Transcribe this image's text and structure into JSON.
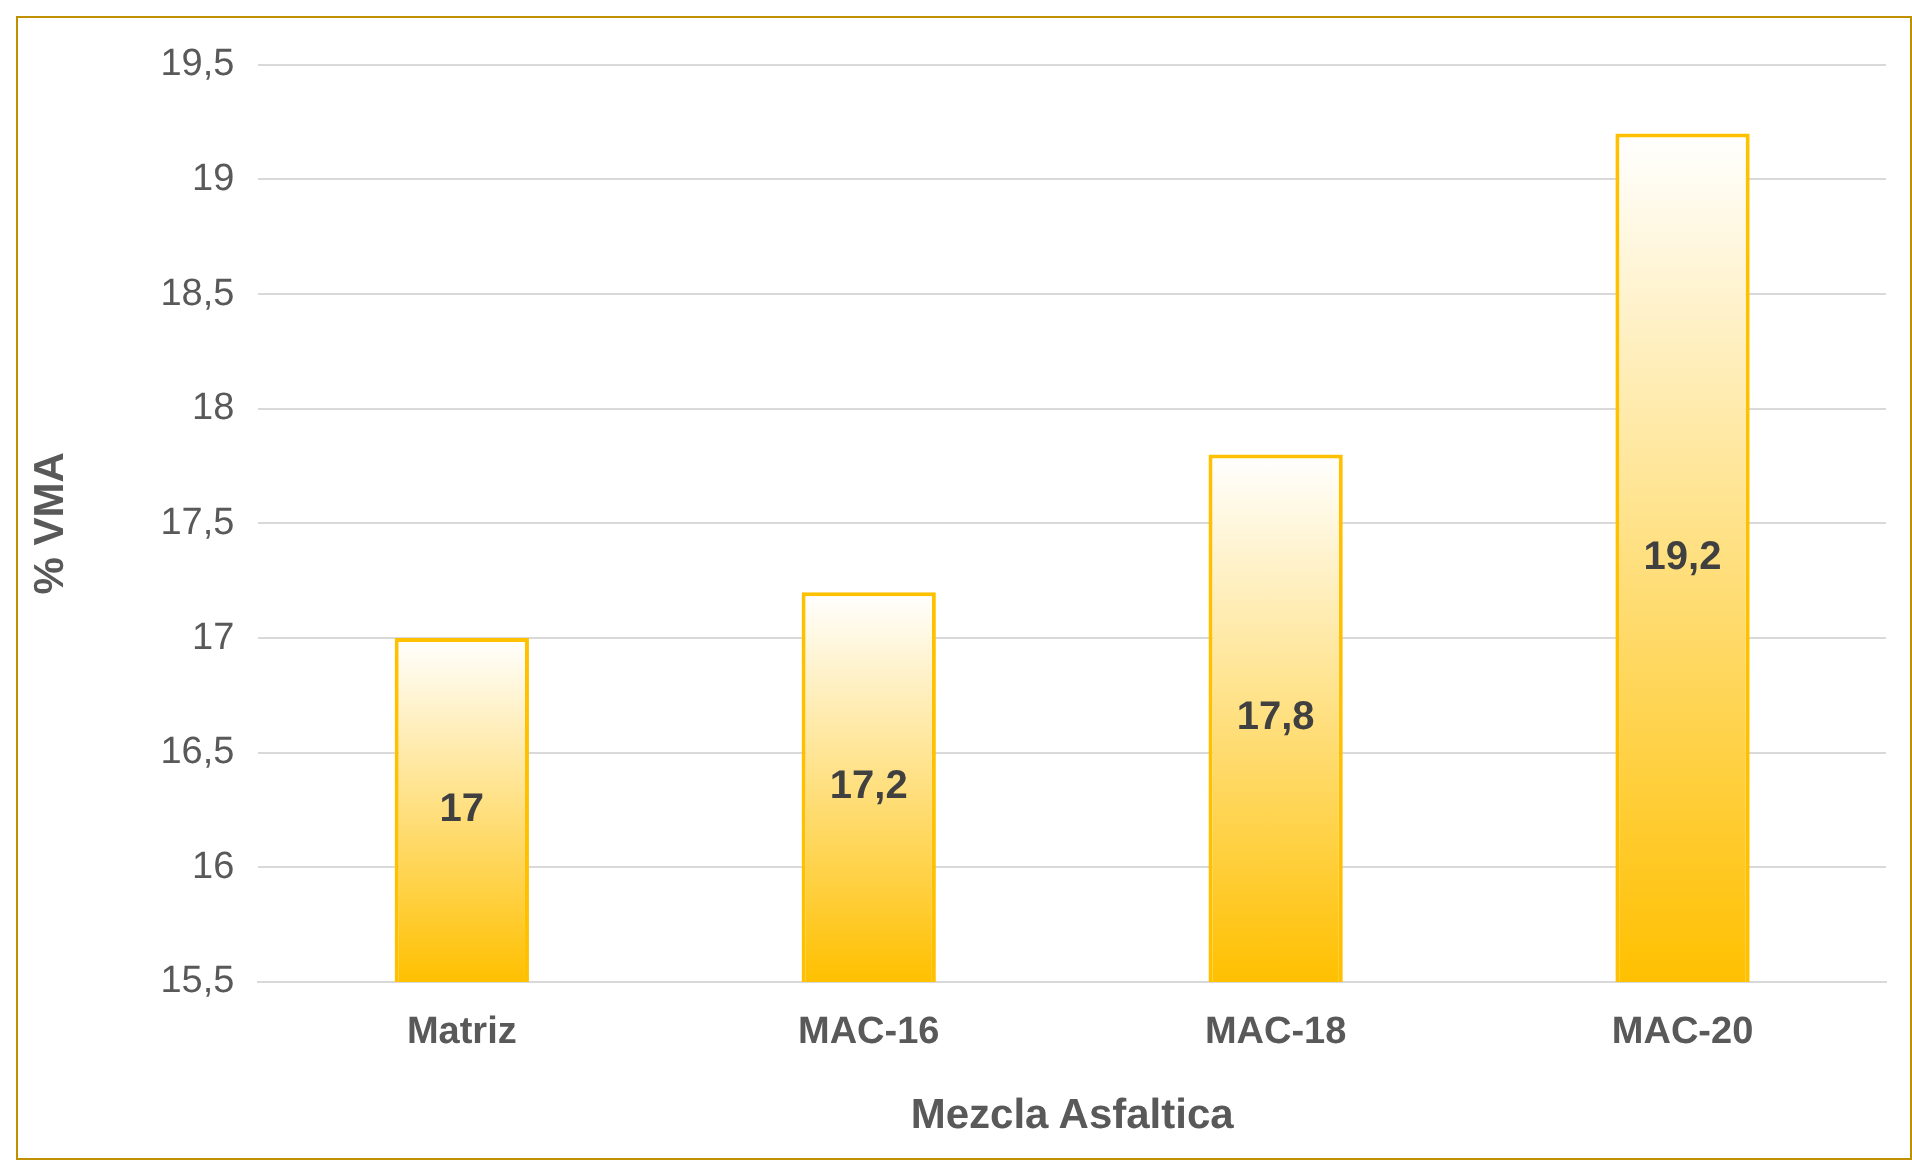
{
  "chart_data": {
    "type": "bar",
    "xlabel": "Mezcla Asfaltica",
    "ylabel": "% VMA",
    "categories": [
      "Matriz",
      "MAC-16",
      "MAC-18",
      "MAC-20"
    ],
    "values": [
      17,
      17.2,
      17.8,
      19.2
    ],
    "value_labels": [
      "17",
      "17,2",
      "17,8",
      "19,2"
    ],
    "color": "#ffc000",
    "ylim": [
      15.5,
      19.5
    ],
    "yticks": [
      {
        "value": 15.5,
        "label": "15,5"
      },
      16,
      {
        "value": 16.5,
        "label": "16,5"
      },
      17,
      {
        "value": 17.5,
        "label": "17,5"
      },
      18,
      {
        "value": 18.5,
        "label": "18,5"
      },
      19,
      {
        "value": 19.5,
        "label": "19,5"
      }
    ],
    "grid": "y",
    "legend": false
  }
}
